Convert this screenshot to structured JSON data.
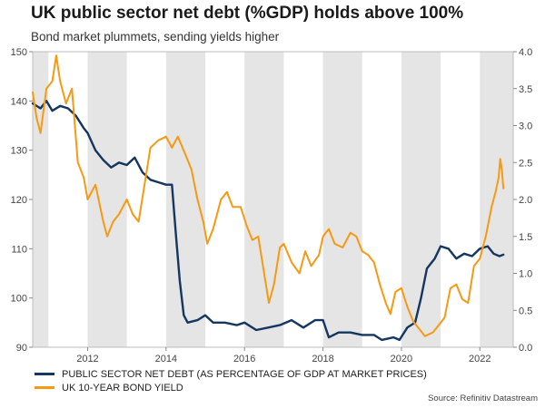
{
  "chart_data": {
    "type": "line",
    "title": "UK public sector net debt (%GDP) holds above 100%",
    "subtitle": "Bond market plummets, sending yields higher",
    "source": "Source: Refinitiv Datastream",
    "x_ticks": [
      2012,
      2014,
      2016,
      2018,
      2020,
      2022
    ],
    "xlim": [
      2010.6,
      2022.85
    ],
    "y_left": {
      "lim": [
        90,
        150
      ],
      "ticks": [
        90,
        100,
        110,
        120,
        130,
        140,
        150
      ]
    },
    "y_right": {
      "lim": [
        0,
        4.0
      ],
      "ticks": [
        "0.0",
        "0.5",
        "1.0",
        "1.5",
        "2.0",
        "2.5",
        "3.0",
        "3.5",
        "4.0"
      ]
    },
    "shaded_years": [
      [
        2010.6,
        2011.0
      ],
      [
        2012.0,
        2013.0
      ],
      [
        2014.0,
        2015.0
      ],
      [
        2016.0,
        2017.0
      ],
      [
        2018.0,
        2019.0
      ],
      [
        2020.0,
        2021.0
      ],
      [
        2022.0,
        2022.85
      ]
    ],
    "colors": {
      "debt": "#14365f",
      "yield": "#f59a12",
      "shade": "#e5e5e5"
    },
    "series": [
      {
        "name": "PUBLIC SECTOR NET DEBT (AS PERCENTAGE OF GDP AT MARKET PRICES)",
        "axis": "left",
        "color": "#14365f",
        "points": [
          [
            2010.6,
            139.5
          ],
          [
            2010.8,
            138.5
          ],
          [
            2010.95,
            140.0
          ],
          [
            2011.1,
            138.0
          ],
          [
            2011.3,
            139.0
          ],
          [
            2011.5,
            138.5
          ],
          [
            2011.7,
            137.0
          ],
          [
            2011.9,
            134.5
          ],
          [
            2012.0,
            133.5
          ],
          [
            2012.2,
            130.0
          ],
          [
            2012.4,
            128.0
          ],
          [
            2012.6,
            126.5
          ],
          [
            2012.8,
            127.5
          ],
          [
            2013.0,
            127.0
          ],
          [
            2013.2,
            128.5
          ],
          [
            2013.4,
            125.5
          ],
          [
            2013.6,
            124.0
          ],
          [
            2013.8,
            123.5
          ],
          [
            2014.0,
            123.0
          ],
          [
            2014.15,
            123.0
          ],
          [
            2014.25,
            113.0
          ],
          [
            2014.35,
            103.5
          ],
          [
            2014.45,
            96.5
          ],
          [
            2014.55,
            95.0
          ],
          [
            2014.8,
            95.5
          ],
          [
            2015.0,
            96.5
          ],
          [
            2015.2,
            95.0
          ],
          [
            2015.5,
            95.0
          ],
          [
            2015.8,
            94.5
          ],
          [
            2016.0,
            95.0
          ],
          [
            2016.3,
            93.5
          ],
          [
            2016.6,
            94.0
          ],
          [
            2016.9,
            94.5
          ],
          [
            2017.2,
            95.5
          ],
          [
            2017.5,
            94.0
          ],
          [
            2017.8,
            95.5
          ],
          [
            2018.0,
            95.5
          ],
          [
            2018.15,
            92.0
          ],
          [
            2018.4,
            93.0
          ],
          [
            2018.7,
            93.0
          ],
          [
            2019.0,
            92.5
          ],
          [
            2019.3,
            92.5
          ],
          [
            2019.5,
            91.5
          ],
          [
            2019.8,
            92.0
          ],
          [
            2019.95,
            91.5
          ],
          [
            2020.15,
            94.0
          ],
          [
            2020.35,
            95.0
          ],
          [
            2020.5,
            100.0
          ],
          [
            2020.65,
            106.0
          ],
          [
            2020.85,
            108.0
          ],
          [
            2021.0,
            110.5
          ],
          [
            2021.2,
            110.0
          ],
          [
            2021.4,
            108.0
          ],
          [
            2021.6,
            109.0
          ],
          [
            2021.8,
            108.5
          ],
          [
            2022.0,
            110.0
          ],
          [
            2022.2,
            110.5
          ],
          [
            2022.35,
            109.0
          ],
          [
            2022.5,
            108.5
          ],
          [
            2022.6,
            108.8
          ]
        ]
      },
      {
        "name": "UK 10-YEAR BOND YIELD",
        "axis": "right",
        "color": "#f59a12",
        "points": [
          [
            2010.6,
            3.45
          ],
          [
            2010.7,
            3.1
          ],
          [
            2010.8,
            2.9
          ],
          [
            2010.95,
            3.5
          ],
          [
            2011.1,
            3.6
          ],
          [
            2011.2,
            3.95
          ],
          [
            2011.3,
            3.6
          ],
          [
            2011.45,
            3.3
          ],
          [
            2011.6,
            3.5
          ],
          [
            2011.75,
            2.5
          ],
          [
            2011.9,
            2.3
          ],
          [
            2012.0,
            2.0
          ],
          [
            2012.2,
            2.2
          ],
          [
            2012.4,
            1.7
          ],
          [
            2012.5,
            1.5
          ],
          [
            2012.65,
            1.7
          ],
          [
            2012.8,
            1.8
          ],
          [
            2013.0,
            2.0
          ],
          [
            2013.15,
            1.8
          ],
          [
            2013.3,
            1.7
          ],
          [
            2013.45,
            2.2
          ],
          [
            2013.6,
            2.7
          ],
          [
            2013.8,
            2.8
          ],
          [
            2014.0,
            2.85
          ],
          [
            2014.15,
            2.7
          ],
          [
            2014.3,
            2.85
          ],
          [
            2014.5,
            2.6
          ],
          [
            2014.65,
            2.4
          ],
          [
            2014.8,
            2.0
          ],
          [
            2014.95,
            1.7
          ],
          [
            2015.05,
            1.4
          ],
          [
            2015.2,
            1.6
          ],
          [
            2015.4,
            2.0
          ],
          [
            2015.55,
            2.1
          ],
          [
            2015.7,
            1.9
          ],
          [
            2015.9,
            1.9
          ],
          [
            2016.05,
            1.65
          ],
          [
            2016.2,
            1.45
          ],
          [
            2016.35,
            1.5
          ],
          [
            2016.5,
            1.0
          ],
          [
            2016.62,
            0.6
          ],
          [
            2016.75,
            0.85
          ],
          [
            2016.9,
            1.35
          ],
          [
            2017.0,
            1.4
          ],
          [
            2017.2,
            1.15
          ],
          [
            2017.4,
            1.0
          ],
          [
            2017.55,
            1.3
          ],
          [
            2017.7,
            1.1
          ],
          [
            2017.9,
            1.25
          ],
          [
            2018.0,
            1.5
          ],
          [
            2018.15,
            1.6
          ],
          [
            2018.3,
            1.4
          ],
          [
            2018.5,
            1.35
          ],
          [
            2018.7,
            1.55
          ],
          [
            2018.85,
            1.5
          ],
          [
            2019.0,
            1.3
          ],
          [
            2019.15,
            1.25
          ],
          [
            2019.3,
            1.15
          ],
          [
            2019.45,
            0.85
          ],
          [
            2019.6,
            0.6
          ],
          [
            2019.72,
            0.45
          ],
          [
            2019.85,
            0.75
          ],
          [
            2020.0,
            0.8
          ],
          [
            2020.15,
            0.55
          ],
          [
            2020.3,
            0.35
          ],
          [
            2020.45,
            0.25
          ],
          [
            2020.6,
            0.15
          ],
          [
            2020.8,
            0.2
          ],
          [
            2020.95,
            0.3
          ],
          [
            2021.1,
            0.4
          ],
          [
            2021.25,
            0.8
          ],
          [
            2021.4,
            0.85
          ],
          [
            2021.55,
            0.65
          ],
          [
            2021.7,
            0.6
          ],
          [
            2021.85,
            1.1
          ],
          [
            2022.0,
            1.2
          ],
          [
            2022.15,
            1.5
          ],
          [
            2022.3,
            1.9
          ],
          [
            2022.4,
            2.1
          ],
          [
            2022.48,
            2.3
          ],
          [
            2022.52,
            2.55
          ],
          [
            2022.56,
            2.4
          ],
          [
            2022.6,
            2.15
          ]
        ]
      }
    ]
  }
}
